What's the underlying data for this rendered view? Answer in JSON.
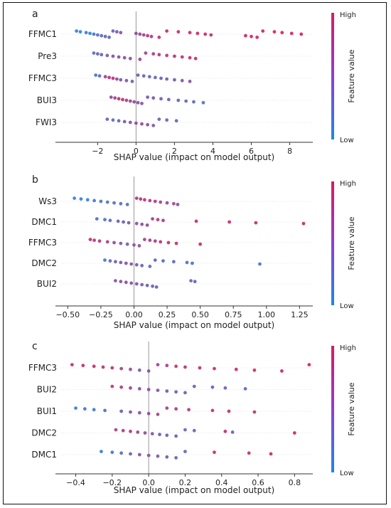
{
  "colors": {
    "low": "#1e88e5",
    "high": "#d81b60",
    "axis": "#333333",
    "zero": "#999999",
    "grid": "#cccccc"
  },
  "colorbar": {
    "high": "High",
    "low": "Low",
    "title": "Feature value"
  },
  "chart_data": [
    {
      "type": "scatter",
      "panel_label": "a",
      "xlabel": "SHAP value (impact on model output)",
      "xlim": [
        -3.9,
        9.2
      ],
      "xticks": [
        -2,
        0,
        2,
        4,
        6,
        8
      ],
      "features": [
        {
          "name": "FFMC1",
          "points": [
            [
              -3.1,
              0.1
            ],
            [
              -2.9,
              0.05
            ],
            [
              -2.6,
              0.15
            ],
            [
              -2.4,
              0.1
            ],
            [
              -2.2,
              0.2
            ],
            [
              -2.0,
              0.25
            ],
            [
              -1.8,
              0.3
            ],
            [
              -1.6,
              0.4
            ],
            [
              -1.4,
              0.35
            ],
            [
              -1.2,
              0.4
            ],
            [
              -1.0,
              0.45
            ],
            [
              -0.8,
              0.5
            ],
            [
              0.0,
              0.6
            ],
            [
              0.2,
              0.65
            ],
            [
              0.4,
              0.7
            ],
            [
              0.6,
              0.75
            ],
            [
              0.8,
              0.8
            ],
            [
              1.2,
              0.85
            ],
            [
              1.6,
              0.9
            ],
            [
              2.2,
              0.9
            ],
            [
              2.8,
              0.95
            ],
            [
              3.2,
              0.95
            ],
            [
              3.6,
              0.95
            ],
            [
              3.9,
              0.95
            ],
            [
              5.7,
              1.0
            ],
            [
              6.0,
              1.0
            ],
            [
              6.3,
              1.0
            ],
            [
              6.6,
              1.0
            ],
            [
              7.2,
              1.0
            ],
            [
              7.6,
              1.0
            ],
            [
              8.1,
              1.0
            ],
            [
              8.6,
              1.0
            ]
          ]
        },
        {
          "name": "Pre3",
          "points": [
            [
              -2.2,
              0.3
            ],
            [
              -2.0,
              0.35
            ],
            [
              -1.8,
              0.4
            ],
            [
              -1.5,
              0.45
            ],
            [
              -1.2,
              0.5
            ],
            [
              -0.9,
              0.5
            ],
            [
              -0.6,
              0.55
            ],
            [
              -0.3,
              0.55
            ],
            [
              0.2,
              0.7
            ],
            [
              0.5,
              0.7
            ],
            [
              0.9,
              0.75
            ],
            [
              1.2,
              0.8
            ],
            [
              1.6,
              0.8
            ],
            [
              2.0,
              0.85
            ],
            [
              2.4,
              0.85
            ],
            [
              2.8,
              0.9
            ],
            [
              3.1,
              0.9
            ]
          ]
        },
        {
          "name": "FFMC3",
          "points": [
            [
              -2.1,
              0.2
            ],
            [
              -1.9,
              0.3
            ],
            [
              -1.6,
              0.7
            ],
            [
              -1.4,
              0.9
            ],
            [
              -1.2,
              0.85
            ],
            [
              -1.0,
              0.6
            ],
            [
              -0.8,
              0.5
            ],
            [
              -0.5,
              0.55
            ],
            [
              -0.2,
              0.45
            ],
            [
              0.1,
              0.4
            ],
            [
              0.4,
              0.35
            ],
            [
              0.7,
              0.3
            ],
            [
              1.0,
              0.35
            ],
            [
              1.3,
              0.4
            ],
            [
              1.6,
              0.45
            ],
            [
              2.0,
              0.5
            ],
            [
              2.4,
              0.5
            ],
            [
              2.8,
              0.55
            ]
          ]
        },
        {
          "name": "BUI3",
          "points": [
            [
              -1.3,
              0.6
            ],
            [
              -1.1,
              0.7
            ],
            [
              -0.9,
              0.9
            ],
            [
              -0.7,
              0.85
            ],
            [
              -0.5,
              0.7
            ],
            [
              -0.3,
              0.65
            ],
            [
              -0.1,
              0.6
            ],
            [
              0.1,
              0.55
            ],
            [
              0.3,
              0.5
            ],
            [
              0.6,
              0.45
            ],
            [
              0.9,
              0.45
            ],
            [
              1.3,
              0.4
            ],
            [
              1.7,
              0.4
            ],
            [
              2.2,
              0.35
            ],
            [
              2.6,
              0.3
            ],
            [
              3.0,
              0.3
            ],
            [
              3.5,
              0.25
            ]
          ]
        },
        {
          "name": "FWI3",
          "points": [
            [
              -1.5,
              0.4
            ],
            [
              -1.2,
              0.3
            ],
            [
              -0.9,
              0.35
            ],
            [
              -0.6,
              0.45
            ],
            [
              -0.3,
              0.5
            ],
            [
              0.0,
              0.6
            ],
            [
              0.3,
              0.65
            ],
            [
              0.6,
              0.55
            ],
            [
              0.9,
              0.45
            ],
            [
              1.2,
              0.4
            ],
            [
              1.6,
              0.35
            ],
            [
              2.1,
              0.3
            ]
          ]
        }
      ]
    },
    {
      "type": "scatter",
      "panel_label": "b",
      "xlabel": "SHAP value (impact on model output)",
      "xlim": [
        -0.55,
        1.35
      ],
      "xticks": [
        -0.5,
        -0.25,
        0.0,
        0.25,
        0.5,
        0.75,
        1.0,
        1.25
      ],
      "xtick_labels": [
        "−0.50",
        "−0.25",
        "0.00",
        "0.25",
        "0.50",
        "0.75",
        "1.00",
        "1.25"
      ],
      "features": [
        {
          "name": "Ws3",
          "points": [
            [
              -0.45,
              0.05
            ],
            [
              -0.4,
              0.1
            ],
            [
              -0.35,
              0.1
            ],
            [
              -0.3,
              0.15
            ],
            [
              -0.25,
              0.2
            ],
            [
              -0.2,
              0.2
            ],
            [
              -0.15,
              0.25
            ],
            [
              -0.1,
              0.3
            ],
            [
              -0.05,
              0.3
            ],
            [
              0.02,
              0.8
            ],
            [
              0.05,
              0.85
            ],
            [
              0.08,
              0.85
            ],
            [
              0.12,
              0.8
            ],
            [
              0.16,
              0.75
            ],
            [
              0.2,
              0.7
            ],
            [
              0.25,
              0.65
            ],
            [
              0.3,
              0.6
            ],
            [
              0.33,
              0.55
            ]
          ]
        },
        {
          "name": "DMC1",
          "points": [
            [
              -0.28,
              0.2
            ],
            [
              -0.22,
              0.25
            ],
            [
              -0.18,
              0.3
            ],
            [
              -0.12,
              0.35
            ],
            [
              -0.08,
              0.4
            ],
            [
              -0.04,
              0.45
            ],
            [
              0.02,
              0.55
            ],
            [
              0.06,
              0.6
            ],
            [
              0.1,
              0.65
            ],
            [
              0.14,
              0.7
            ],
            [
              0.18,
              0.75
            ],
            [
              0.22,
              0.8
            ],
            [
              0.47,
              0.85
            ],
            [
              0.72,
              0.9
            ],
            [
              0.92,
              0.9
            ],
            [
              1.28,
              0.95
            ]
          ]
        },
        {
          "name": "FFMC3",
          "points": [
            [
              -0.33,
              0.9
            ],
            [
              -0.3,
              0.85
            ],
            [
              -0.26,
              0.8
            ],
            [
              -0.2,
              0.7
            ],
            [
              -0.15,
              0.6
            ],
            [
              -0.1,
              0.5
            ],
            [
              -0.05,
              0.45
            ],
            [
              0.0,
              0.5
            ],
            [
              0.04,
              0.6
            ],
            [
              0.08,
              0.7
            ],
            [
              0.12,
              0.75
            ],
            [
              0.16,
              0.8
            ],
            [
              0.2,
              0.8
            ],
            [
              0.26,
              0.85
            ],
            [
              0.32,
              0.9
            ],
            [
              0.5,
              0.95
            ]
          ]
        },
        {
          "name": "DMC2",
          "points": [
            [
              -0.22,
              0.2
            ],
            [
              -0.18,
              0.3
            ],
            [
              -0.14,
              0.4
            ],
            [
              -0.1,
              0.5
            ],
            [
              -0.06,
              0.55
            ],
            [
              -0.02,
              0.5
            ],
            [
              0.02,
              0.45
            ],
            [
              0.06,
              0.4
            ],
            [
              0.12,
              0.35
            ],
            [
              0.16,
              0.35
            ],
            [
              0.22,
              0.3
            ],
            [
              0.3,
              0.3
            ],
            [
              0.4,
              0.25
            ],
            [
              0.44,
              0.25
            ],
            [
              0.95,
              0.2
            ]
          ]
        },
        {
          "name": "BUI2",
          "points": [
            [
              -0.14,
              0.5
            ],
            [
              -0.1,
              0.55
            ],
            [
              -0.06,
              0.6
            ],
            [
              -0.02,
              0.55
            ],
            [
              0.02,
              0.5
            ],
            [
              0.06,
              0.45
            ],
            [
              0.1,
              0.45
            ],
            [
              0.14,
              0.4
            ],
            [
              0.17,
              0.4
            ],
            [
              0.43,
              0.35
            ],
            [
              0.46,
              0.35
            ]
          ]
        }
      ]
    },
    {
      "type": "scatter",
      "panel_label": "c",
      "xlabel": "SHAP value (impact on model output)",
      "xlim": [
        -0.48,
        0.9
      ],
      "xticks": [
        -0.4,
        -0.2,
        0.0,
        0.2,
        0.4,
        0.6,
        0.8
      ],
      "xtick_labels": [
        "−0.4",
        "−0.2",
        "0.0",
        "0.2",
        "0.4",
        "0.6",
        "0.8"
      ],
      "features": [
        {
          "name": "FFMC3",
          "points": [
            [
              -0.42,
              0.9
            ],
            [
              -0.36,
              0.9
            ],
            [
              -0.3,
              0.95
            ],
            [
              -0.25,
              0.85
            ],
            [
              -0.2,
              0.8
            ],
            [
              -0.15,
              0.7
            ],
            [
              -0.1,
              0.6
            ],
            [
              -0.05,
              0.5
            ],
            [
              0.0,
              0.55
            ],
            [
              0.05,
              0.65
            ],
            [
              0.1,
              0.75
            ],
            [
              0.15,
              0.8
            ],
            [
              0.2,
              0.85
            ],
            [
              0.28,
              0.9
            ],
            [
              0.36,
              0.9
            ],
            [
              0.48,
              0.95
            ],
            [
              0.58,
              0.95
            ],
            [
              0.73,
              0.95
            ],
            [
              0.88,
              1.0
            ]
          ]
        },
        {
          "name": "BUI2",
          "points": [
            [
              -0.2,
              0.8
            ],
            [
              -0.15,
              0.75
            ],
            [
              -0.1,
              0.7
            ],
            [
              -0.05,
              0.6
            ],
            [
              0.0,
              0.55
            ],
            [
              0.05,
              0.5
            ],
            [
              0.1,
              0.45
            ],
            [
              0.15,
              0.45
            ],
            [
              0.2,
              0.4
            ],
            [
              0.25,
              0.4
            ],
            [
              0.35,
              0.35
            ],
            [
              0.42,
              0.35
            ],
            [
              0.53,
              0.3
            ]
          ]
        },
        {
          "name": "BUI1",
          "points": [
            [
              -0.4,
              0.15
            ],
            [
              -0.35,
              0.2
            ],
            [
              -0.3,
              0.2
            ],
            [
              -0.24,
              0.25
            ],
            [
              -0.15,
              0.45
            ],
            [
              -0.1,
              0.5
            ],
            [
              -0.05,
              0.55
            ],
            [
              0.0,
              0.6
            ],
            [
              0.05,
              0.65
            ],
            [
              0.1,
              0.7
            ],
            [
              0.15,
              0.75
            ],
            [
              0.22,
              0.8
            ],
            [
              0.35,
              0.85
            ],
            [
              0.44,
              0.9
            ],
            [
              0.58,
              0.9
            ]
          ]
        },
        {
          "name": "DMC2",
          "points": [
            [
              -0.18,
              0.7
            ],
            [
              -0.14,
              0.75
            ],
            [
              -0.1,
              0.8
            ],
            [
              -0.06,
              0.7
            ],
            [
              -0.02,
              0.6
            ],
            [
              0.02,
              0.5
            ],
            [
              0.06,
              0.45
            ],
            [
              0.1,
              0.4
            ],
            [
              0.15,
              0.4
            ],
            [
              0.2,
              0.35
            ],
            [
              0.25,
              0.35
            ],
            [
              0.42,
              0.9
            ],
            [
              0.46,
              0.4
            ],
            [
              0.8,
              0.95
            ]
          ]
        },
        {
          "name": "DMC1",
          "points": [
            [
              -0.26,
              0.15
            ],
            [
              -0.2,
              0.2
            ],
            [
              -0.15,
              0.3
            ],
            [
              -0.1,
              0.4
            ],
            [
              -0.05,
              0.5
            ],
            [
              0.0,
              0.55
            ],
            [
              0.05,
              0.5
            ],
            [
              0.1,
              0.45
            ],
            [
              0.15,
              0.4
            ],
            [
              0.2,
              0.35
            ],
            [
              0.36,
              0.9
            ],
            [
              0.55,
              0.85
            ],
            [
              0.67,
              0.9
            ]
          ]
        }
      ]
    }
  ]
}
